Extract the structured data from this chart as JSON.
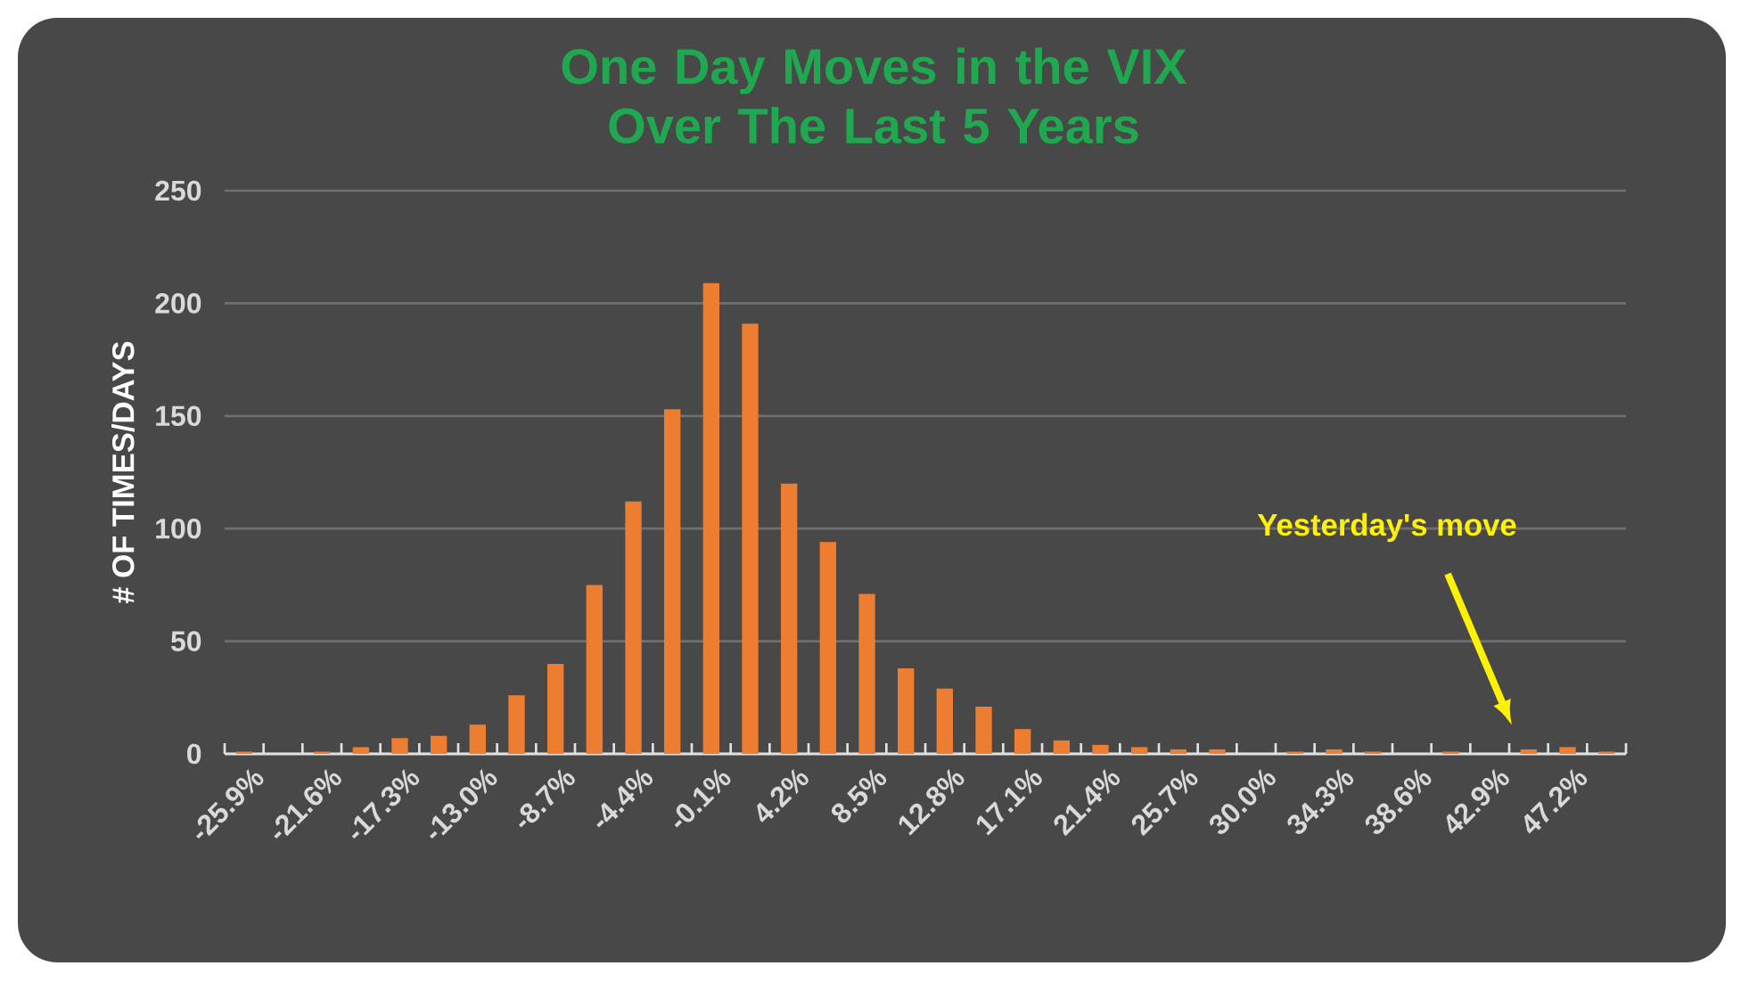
{
  "chart_data": {
    "type": "bar",
    "title": "One Day Moves in the VIX Over The Last 5 Years",
    "ylabel": "# OF TIMES/DAYS",
    "categories": [
      "-25.9%",
      null,
      "-21.6%",
      null,
      "-17.3%",
      null,
      "-13.0%",
      null,
      "-8.7%",
      null,
      "-4.4%",
      null,
      "-0.1%",
      null,
      "4.2%",
      null,
      "8.5%",
      null,
      "12.8%",
      null,
      "17.1%",
      null,
      "21.4%",
      null,
      "25.7%",
      null,
      "30.0%",
      null,
      "34.3%",
      null,
      "38.6%",
      null,
      "42.9%",
      null,
      "47.2%",
      null
    ],
    "values": [
      1,
      0,
      1,
      3,
      7,
      8,
      13,
      26,
      40,
      75,
      112,
      153,
      209,
      191,
      120,
      94,
      71,
      38,
      29,
      21,
      11,
      6,
      4,
      3,
      2,
      2,
      0,
      1,
      2,
      1,
      0,
      1,
      0,
      2,
      3,
      1
    ],
    "color": "#ed7d31",
    "ylim": [
      0,
      250
    ],
    "yticks": [
      0,
      50,
      100,
      150,
      200,
      250
    ],
    "grid": "y",
    "annotations": [
      "Yesterday's move"
    ]
  }
}
